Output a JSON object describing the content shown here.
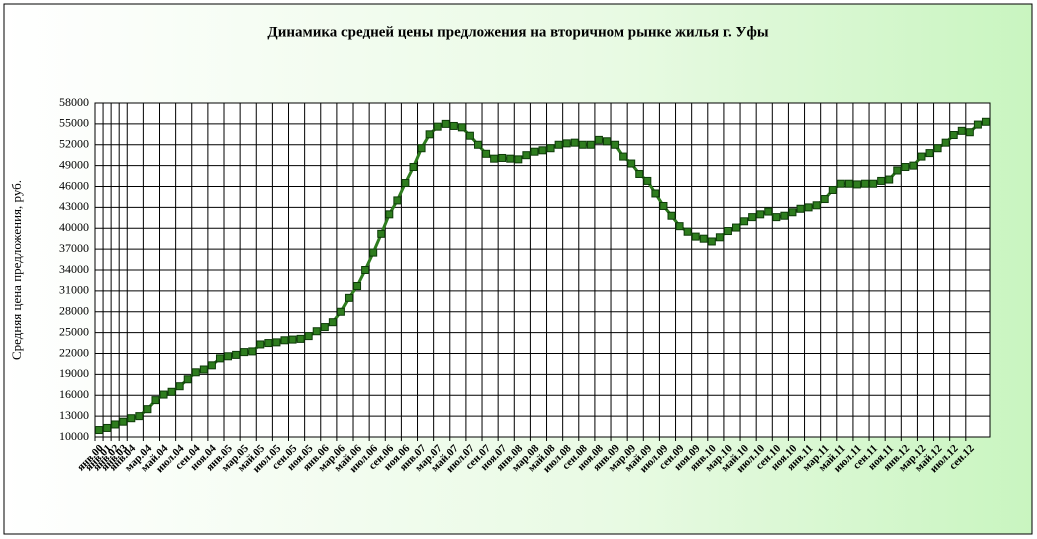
{
  "chart_data": {
    "type": "line",
    "title": "Динамика средней  цены предложения на вторичном рынке жилья г. Уфы",
    "y_label": "Средняя цена предложения, руб.",
    "categories": [
      "янв.00",
      "янв.01",
      "янв.02",
      "янв.03",
      "янв.04",
      null,
      "мар.04",
      null,
      "май.04",
      null,
      "июл.04",
      null,
      "сен.04",
      null,
      "ноя.04",
      null,
      "янв.05",
      null,
      "мар.05",
      null,
      "май.05",
      null,
      "июл.05",
      null,
      "сен.05",
      null,
      "ноя.05",
      null,
      "янв.06",
      null,
      "мар.06",
      null,
      "май.06",
      null,
      "июл.06",
      null,
      "сен.06",
      null,
      "ноя.06",
      null,
      "янв.07",
      null,
      "мар.07",
      null,
      "май.07",
      null,
      "июл.07",
      null,
      "сен.07",
      null,
      "ноя.07",
      null,
      "янв.08",
      null,
      "мар.08",
      null,
      "май.08",
      null,
      "июл.08",
      null,
      "сен.08",
      null,
      "ноя.08",
      null,
      "янв.09",
      null,
      "мар.09",
      null,
      "май.09",
      null,
      "июл.09",
      null,
      "сен.09",
      null,
      "ноя.09",
      null,
      "янв.10",
      null,
      "мар.10",
      null,
      "май.10",
      null,
      "июл.10",
      null,
      "сен.10",
      null,
      "ноя.10",
      null,
      "янв.11",
      null,
      "мар.11",
      null,
      "май.11",
      null,
      "июл.11",
      null,
      "сен.11",
      null,
      "ноя.11",
      null,
      "янв.12",
      null,
      "мар.12",
      null,
      "май.12",
      null,
      "июл.12",
      null,
      "сен.12",
      null,
      null
    ],
    "values": [
      11000,
      11300,
      11800,
      12200,
      12700,
      13000,
      14000,
      15300,
      16100,
      16500,
      17300,
      18300,
      19300,
      19700,
      20300,
      21300,
      21600,
      21800,
      22200,
      22300,
      23300,
      23500,
      23600,
      23900,
      24000,
      24100,
      24500,
      25200,
      25800,
      26500,
      28000,
      30000,
      31700,
      34000,
      36500,
      39200,
      42000,
      44000,
      46500,
      48800,
      51500,
      53500,
      54600,
      55000,
      54700,
      54500,
      53300,
      52000,
      50700,
      50000,
      50100,
      50000,
      49900,
      50500,
      51000,
      51200,
      51500,
      52000,
      52200,
      52300,
      52000,
      52000,
      52700,
      52500,
      52000,
      50300,
      49300,
      47800,
      46800,
      45000,
      43200,
      41800,
      40300,
      39500,
      38800,
      38500,
      38100,
      38700,
      39600,
      40100,
      41000,
      41600,
      42000,
      42400,
      41600,
      41800,
      42300,
      42800,
      43000,
      43300,
      44200,
      45500,
      46400,
      46400,
      46300,
      46400,
      46400,
      46800,
      47000,
      48300,
      48800,
      49000,
      50300,
      50800,
      51500,
      52300,
      53400,
      54000,
      53800,
      54900,
      55300
    ],
    "color": "#2e7d1e",
    "ylim": [
      10000,
      58000
    ],
    "yticks": [
      10000,
      13000,
      16000,
      19000,
      22000,
      25000,
      28000,
      31000,
      34000,
      37000,
      40000,
      43000,
      46000,
      49000,
      52000,
      55000,
      58000
    ],
    "grid": true
  }
}
